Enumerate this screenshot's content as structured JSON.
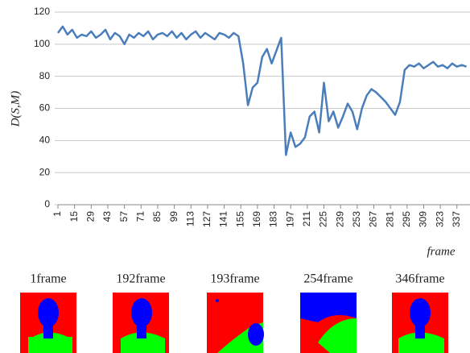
{
  "chart_data": {
    "type": "line",
    "y_label": "D(S,M)",
    "x_label": "frame",
    "x": [
      1,
      5,
      9,
      13,
      17,
      21,
      25,
      29,
      33,
      37,
      41,
      45,
      49,
      53,
      57,
      61,
      65,
      69,
      73,
      77,
      81,
      85,
      89,
      93,
      97,
      101,
      105,
      109,
      113,
      117,
      121,
      125,
      129,
      133,
      137,
      141,
      145,
      149,
      153,
      157,
      161,
      165,
      169,
      173,
      177,
      181,
      185,
      189,
      193,
      197,
      201,
      205,
      209,
      213,
      217,
      221,
      225,
      229,
      233,
      237,
      241,
      245,
      249,
      253,
      257,
      261,
      265,
      269,
      273,
      277,
      281,
      285,
      289,
      293,
      297,
      301,
      305,
      309,
      313,
      317,
      321,
      325,
      329,
      333,
      337,
      341,
      345
    ],
    "series": [
      {
        "color": "#4a7ebb",
        "values": [
          107,
          111,
          106,
          109,
          104,
          106,
          105,
          108,
          104,
          106,
          109,
          103,
          107,
          105,
          100,
          106,
          104,
          107,
          105,
          108,
          103,
          106,
          107,
          105,
          108,
          104,
          107,
          103,
          106,
          108,
          104,
          107,
          105,
          103,
          107,
          106,
          104,
          107,
          105,
          88,
          62,
          73,
          76,
          92,
          97,
          88,
          96,
          104,
          31,
          45,
          36,
          38,
          42,
          55,
          58,
          45,
          76,
          52,
          58,
          48,
          55,
          63,
          58,
          47,
          60,
          68,
          72,
          70,
          67,
          64,
          60,
          56,
          64,
          84,
          87,
          86,
          88,
          85,
          87,
          89,
          86,
          87,
          85,
          88,
          86,
          87,
          86
        ]
      }
    ],
    "xlim": [
      1,
      348
    ],
    "xticks": [
      1,
      15,
      29,
      43,
      57,
      71,
      85,
      99,
      113,
      127,
      141,
      155,
      169,
      183,
      197,
      211,
      225,
      239,
      253,
      267,
      281,
      295,
      309,
      323,
      337
    ],
    "ylim": [
      0,
      120
    ],
    "yticks": [
      0,
      20,
      40,
      60,
      80,
      100,
      120
    ],
    "grid": true
  },
  "panel_labels": [
    "1frame",
    "192frame",
    "193frame",
    "254frame",
    "346frame"
  ]
}
